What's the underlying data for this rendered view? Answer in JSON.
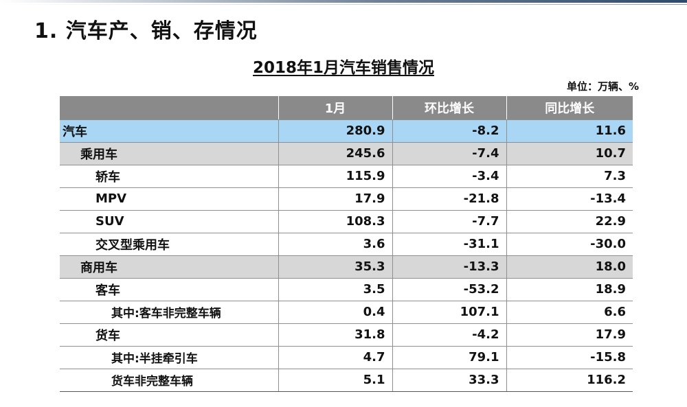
{
  "slide_title": "1. 汽车产、销、存情况",
  "table_title": "2018年1月汽车销售情况",
  "unit_label": "单位：万辆、%",
  "columns": [
    "",
    "1月",
    "环比增长",
    "同比增长"
  ],
  "rows": [
    {
      "name": "汽车",
      "level": 0,
      "jan": "280.9",
      "mom": "-8.2",
      "yoy": "11.6"
    },
    {
      "name": "乘用车",
      "level": 1,
      "jan": "245.6",
      "mom": "-7.4",
      "yoy": "10.7"
    },
    {
      "name": "轿车",
      "level": 2,
      "jan": "115.9",
      "mom": "-3.4",
      "yoy": "7.3"
    },
    {
      "name": "MPV",
      "level": 2,
      "jan": "17.9",
      "mom": "-21.8",
      "yoy": "-13.4"
    },
    {
      "name": "SUV",
      "level": 2,
      "jan": "108.3",
      "mom": "-7.7",
      "yoy": "22.9"
    },
    {
      "name": "交叉型乘用车",
      "level": 2,
      "jan": "3.6",
      "mom": "-31.1",
      "yoy": "-30.0"
    },
    {
      "name": "商用车",
      "level": 1,
      "jan": "35.3",
      "mom": "-13.3",
      "yoy": "18.0"
    },
    {
      "name": "客车",
      "level": 2,
      "jan": "3.5",
      "mom": "-53.2",
      "yoy": "18.9"
    },
    {
      "name": "其中:客车非完整车辆",
      "level": 3,
      "jan": "0.4",
      "mom": "107.1",
      "yoy": "6.6"
    },
    {
      "name": "货车",
      "level": 2,
      "jan": "31.8",
      "mom": "-4.2",
      "yoy": "17.9"
    },
    {
      "name": "其中:半挂牵引车",
      "level": 3,
      "jan": "4.7",
      "mom": "79.1",
      "yoy": "-15.8"
    },
    {
      "name": "货车非完整车辆",
      "level": 3,
      "jan": "5.1",
      "mom": "33.3",
      "yoy": "116.2"
    }
  ]
}
